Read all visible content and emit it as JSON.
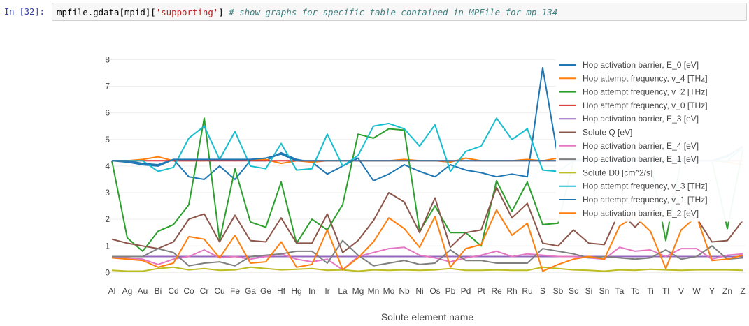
{
  "cell": {
    "prompt": "In [32]:",
    "code_pre": "mpfile.gdata[mpid][",
    "code_str": "'supporting'",
    "code_post": "] ",
    "code_comment": "# show graphs for specific table contained in MPFile for mp-134"
  },
  "chart_data": {
    "type": "line",
    "xlabel": "Solute element name",
    "ylabel": "",
    "ylim": [
      -0.2,
      8.3
    ],
    "yticks": [
      0,
      1,
      2,
      3,
      4,
      5,
      6,
      7,
      8
    ],
    "grid": true,
    "legend_position": "top-right",
    "categories": [
      "Al",
      "Ag",
      "Au",
      "Bi",
      "Cd",
      "Co",
      "Cr",
      "Cu",
      "Fe",
      "Ga",
      "Ge",
      "Hf",
      "Hg",
      "In",
      "Ir",
      "La",
      "Mg",
      "Mn",
      "Mo",
      "Nb",
      "Ni",
      "Os",
      "Pb",
      "Pd",
      "Pt",
      "Re",
      "Rh",
      "Ru",
      "S",
      "Sb",
      "Sc",
      "Si",
      "Sn",
      "Ta",
      "Tc",
      "Ti",
      "Tl",
      "V",
      "W",
      "Y",
      "Zn",
      "Z"
    ],
    "series": [
      {
        "name": "Hop activation barrier, E_0 [eV]",
        "color": "#1f77b4",
        "values": [
          4.2,
          4.15,
          4.05,
          4.0,
          4.25,
          3.6,
          3.5,
          4.0,
          3.5,
          4.2,
          4.2,
          4.5,
          4.25,
          4.15,
          3.7,
          4.0,
          4.3,
          3.45,
          3.7,
          4.05,
          3.8,
          3.6,
          4.05,
          3.85,
          3.75,
          3.6,
          3.7,
          3.6,
          7.7,
          4.3,
          4.25,
          4.25,
          4.2,
          4.2,
          4.25,
          4.2,
          4.2,
          4.25,
          4.2,
          4.2,
          4.4,
          4.7
        ]
      },
      {
        "name": "Hop attempt frequency, v_4 [THz]",
        "color": "#ff7f0e",
        "values": [
          4.2,
          4.2,
          4.25,
          4.35,
          4.2,
          4.2,
          4.2,
          4.25,
          4.2,
          4.25,
          4.25,
          4.1,
          4.2,
          4.15,
          4.2,
          4.2,
          4.2,
          4.2,
          4.2,
          4.25,
          4.2,
          4.2,
          4.15,
          4.3,
          4.2,
          4.2,
          4.2,
          4.25,
          4.2,
          4.3,
          4.2,
          4.2,
          4.25,
          4.2,
          4.2,
          4.2,
          4.25,
          4.2,
          4.2,
          4.2,
          4.15,
          4.05
        ]
      },
      {
        "name": "Hop attempt frequency, v_2 [THz]",
        "color": "#2ca02c",
        "values": [
          4.2,
          1.3,
          0.8,
          1.55,
          1.8,
          2.55,
          5.8,
          1.2,
          3.9,
          1.9,
          1.7,
          3.4,
          1.1,
          2.0,
          1.6,
          2.55,
          5.2,
          5.05,
          5.4,
          5.35,
          1.55,
          2.5,
          1.5,
          1.5,
          1.0,
          3.45,
          2.3,
          3.4,
          1.8,
          1.85,
          4.2,
          4.2,
          4.2,
          4.2,
          4.2,
          4.2,
          1.2,
          4.2,
          4.2,
          4.2,
          1.65,
          4.6
        ]
      },
      {
        "name": "Hop attempt frequency, v_0 [THz]",
        "color": "#d62728",
        "values": [
          4.2,
          4.2,
          4.2,
          4.2,
          4.2,
          4.2,
          4.2,
          4.2,
          4.2,
          4.2,
          4.2,
          4.2,
          4.2,
          4.2,
          4.2,
          4.2,
          4.2,
          4.2,
          4.2,
          4.2,
          4.2,
          4.2,
          4.2,
          4.2,
          4.2,
          4.2,
          4.2,
          4.2,
          4.2,
          4.2,
          4.2,
          4.2,
          4.2,
          4.2,
          4.2,
          4.2,
          4.2,
          4.2,
          4.2,
          4.2,
          4.2,
          4.2
        ]
      },
      {
        "name": "Hop activation barrier, E_3 [eV]",
        "color": "#9467bd",
        "values": [
          0.6,
          0.6,
          0.6,
          0.6,
          0.6,
          0.6,
          0.6,
          0.6,
          0.6,
          0.6,
          0.6,
          0.6,
          0.6,
          0.6,
          0.6,
          0.6,
          0.6,
          0.6,
          0.6,
          0.6,
          0.6,
          0.6,
          0.6,
          0.6,
          0.6,
          0.6,
          0.6,
          0.6,
          0.6,
          0.6,
          0.6,
          0.6,
          0.6,
          0.6,
          0.6,
          0.6,
          0.6,
          0.6,
          0.6,
          0.6,
          0.6,
          0.6
        ]
      },
      {
        "name": "Solute Q [eV]",
        "color": "#8c564b",
        "values": [
          1.25,
          1.1,
          1.0,
          0.9,
          1.15,
          2.0,
          2.2,
          1.15,
          2.15,
          1.2,
          1.15,
          2.05,
          1.1,
          1.1,
          2.2,
          0.75,
          1.2,
          1.95,
          3.0,
          2.65,
          1.5,
          2.8,
          0.95,
          1.5,
          1.6,
          3.2,
          2.05,
          2.6,
          1.1,
          1.0,
          1.6,
          1.1,
          1.05,
          2.3,
          1.7,
          2.35,
          2.1,
          2.15,
          2.05,
          1.15,
          1.2,
          1.95
        ]
      },
      {
        "name": "Hop activation barrier, E_4 [eV]",
        "color": "#e377c2",
        "values": [
          0.6,
          0.55,
          0.5,
          0.3,
          0.5,
          0.6,
          0.85,
          0.55,
          0.6,
          0.5,
          0.6,
          0.7,
          0.5,
          0.4,
          0.5,
          0.1,
          0.6,
          0.75,
          0.9,
          0.95,
          0.65,
          0.55,
          0.4,
          0.55,
          0.65,
          0.8,
          0.6,
          0.7,
          0.65,
          0.6,
          0.6,
          0.55,
          0.5,
          0.95,
          0.8,
          0.85,
          0.6,
          0.9,
          0.9,
          0.5,
          0.65,
          0.7
        ]
      },
      {
        "name": "Hop activation barrier, E_1 [eV]",
        "color": "#7f7f7f",
        "values": [
          0.6,
          0.6,
          0.6,
          0.9,
          0.75,
          0.25,
          0.35,
          0.4,
          0.25,
          0.6,
          0.65,
          0.7,
          0.8,
          0.8,
          0.35,
          1.2,
          0.65,
          0.25,
          0.35,
          0.45,
          0.3,
          0.35,
          0.85,
          0.45,
          0.45,
          0.35,
          0.35,
          0.35,
          0.9,
          0.8,
          0.7,
          0.55,
          0.6,
          0.55,
          0.5,
          0.55,
          0.85,
          0.5,
          0.6,
          1.0,
          0.5,
          0.55
        ]
      },
      {
        "name": "Solute D0 [cm^2/s]",
        "color": "#bcbd22",
        "values": [
          0.08,
          0.05,
          0.05,
          0.15,
          0.2,
          0.1,
          0.15,
          0.08,
          0.1,
          0.2,
          0.15,
          0.1,
          0.12,
          0.15,
          0.08,
          0.1,
          0.05,
          0.1,
          0.08,
          0.1,
          0.08,
          0.1,
          0.15,
          0.08,
          0.08,
          0.1,
          0.08,
          0.08,
          0.2,
          0.15,
          0.1,
          0.08,
          0.05,
          0.1,
          0.08,
          0.12,
          0.1,
          0.08,
          0.1,
          0.1,
          0.1,
          0.08
        ]
      },
      {
        "name": "Hop attempt frequency, v_3 [THz]",
        "color": "#17becf",
        "values": [
          4.2,
          4.2,
          4.2,
          3.8,
          3.95,
          5.05,
          5.5,
          4.25,
          5.3,
          4.0,
          3.9,
          4.85,
          3.85,
          3.9,
          5.2,
          4.0,
          4.4,
          5.5,
          5.6,
          5.4,
          4.75,
          5.55,
          3.8,
          4.55,
          4.75,
          5.8,
          5.0,
          5.4,
          3.85,
          3.8,
          4.2,
          4.2,
          4.2,
          4.2,
          4.2,
          4.2,
          4.2,
          4.2,
          4.2,
          4.2,
          4.2,
          4.7
        ]
      },
      {
        "name": "Hop attempt frequency, v_1 [THz]",
        "color": "#1f77b4",
        "values": [
          4.2,
          4.2,
          4.1,
          4.05,
          4.25,
          4.25,
          4.25,
          4.25,
          4.25,
          4.25,
          4.3,
          4.45,
          4.2,
          4.2,
          4.2,
          4.2,
          4.2,
          4.2,
          4.2,
          4.2,
          4.2,
          4.2,
          4.2,
          4.2,
          4.2,
          4.2,
          4.2,
          4.2,
          4.2,
          4.2,
          4.2,
          4.2,
          4.2,
          4.2,
          4.2,
          4.2,
          4.2,
          4.2,
          4.2,
          4.2,
          4.35,
          4.75
        ]
      },
      {
        "name": "Hop activation barrier, E_2 [eV]",
        "color": "#ff7f0e",
        "values": [
          0.55,
          0.5,
          0.45,
          0.2,
          0.35,
          1.35,
          1.25,
          0.55,
          1.4,
          0.35,
          0.4,
          1.15,
          0.2,
          0.3,
          1.6,
          0.1,
          0.55,
          1.15,
          2.05,
          1.65,
          0.95,
          2.1,
          0.2,
          0.9,
          1.05,
          2.35,
          1.4,
          1.85,
          0.05,
          0.3,
          0.5,
          0.6,
          0.5,
          1.75,
          2.1,
          1.55,
          0.15,
          1.6,
          2.1,
          0.45,
          0.5,
          0.65
        ]
      }
    ]
  }
}
